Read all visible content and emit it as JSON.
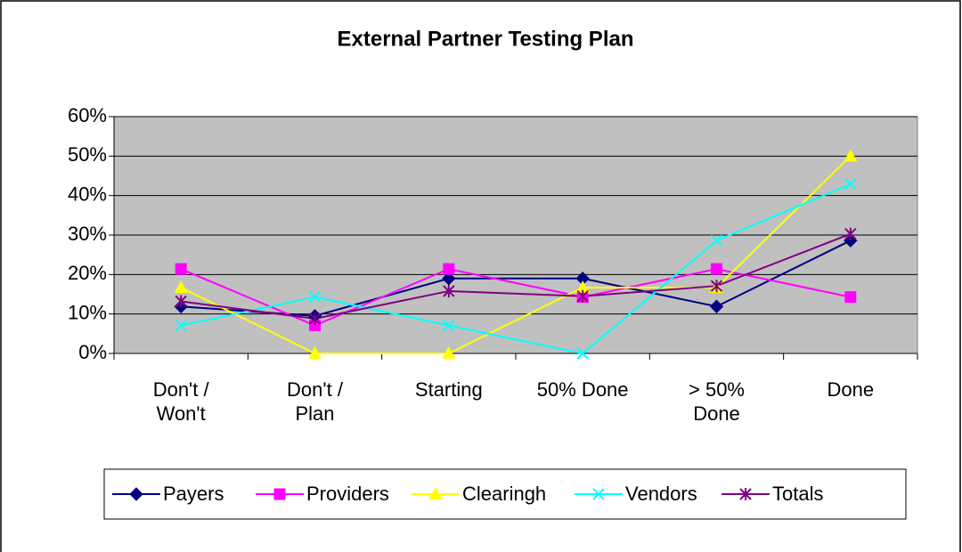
{
  "chart_data": {
    "type": "line",
    "title": "External  Partner Testing Plan",
    "categories": [
      "Don't / Won't",
      "Don't / Plan",
      "Starting",
      "50% Done",
      "> 50% Done",
      "Done"
    ],
    "series": [
      {
        "name": "Payers",
        "color": "#000080",
        "marker": "diamond",
        "values": [
          11.9,
          9.5,
          19,
          19,
          11.9,
          28.6
        ]
      },
      {
        "name": "Providers",
        "color": "#ff00ff",
        "marker": "square",
        "values": [
          21.4,
          7.1,
          21.4,
          14.3,
          21.4,
          14.3
        ]
      },
      {
        "name": "Clearingh",
        "color": "#ffff00",
        "marker": "triangle",
        "values": [
          16.7,
          0,
          0,
          16.7,
          16.7,
          50
        ]
      },
      {
        "name": "Vendors",
        "color": "#00ffff",
        "marker": "x",
        "values": [
          7.1,
          14.3,
          7.1,
          0,
          28.6,
          42.9
        ]
      },
      {
        "name": "Totals",
        "color": "#800080",
        "marker": "asterisk",
        "values": [
          13.2,
          8.8,
          15.8,
          14.5,
          17.1,
          30.3
        ]
      }
    ],
    "ylim": [
      0,
      60
    ],
    "yticks": [
      {
        "value": 0,
        "label": "0%"
      },
      {
        "value": 10,
        "label": "10%"
      },
      {
        "value": 20,
        "label": "20%"
      },
      {
        "value": 30,
        "label": "30%"
      },
      {
        "value": 40,
        "label": "40%"
      },
      {
        "value": 50,
        "label": "50%"
      },
      {
        "value": 60,
        "label": "60%"
      }
    ],
    "grid": true,
    "plot_background": "#c0c0c0",
    "legend": "bottom"
  }
}
